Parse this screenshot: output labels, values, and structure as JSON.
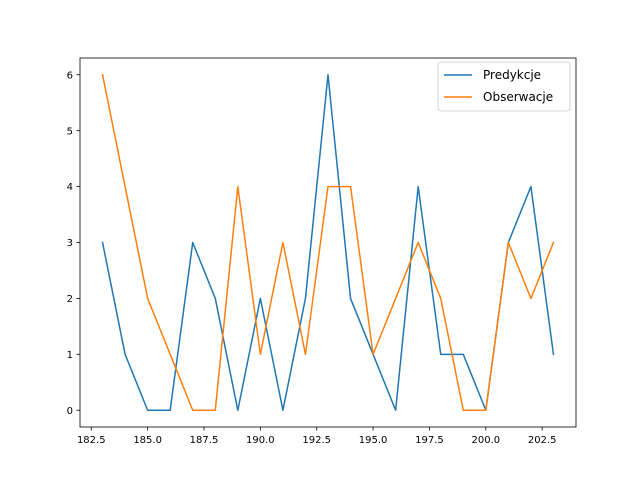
{
  "chart_data": {
    "type": "line",
    "title": "",
    "xlabel": "",
    "ylabel": "",
    "xlim": [
      182.0,
      204.0
    ],
    "ylim": [
      -0.3,
      6.3
    ],
    "x_ticks": [
      182.5,
      185.0,
      187.5,
      190.0,
      192.5,
      195.0,
      197.5,
      200.0,
      202.5
    ],
    "x_tick_labels": [
      "182.5",
      "185.0",
      "187.5",
      "190.0",
      "192.5",
      "195.0",
      "197.5",
      "200.0",
      "202.5"
    ],
    "y_ticks": [
      0,
      1,
      2,
      3,
      4,
      5,
      6
    ],
    "y_tick_labels": [
      "0",
      "1",
      "2",
      "3",
      "4",
      "5",
      "6"
    ],
    "grid": false,
    "legend_position": "top-right",
    "x": [
      183,
      184,
      185,
      186,
      187,
      188,
      189,
      190,
      191,
      192,
      193,
      194,
      195,
      196,
      197,
      198,
      199,
      200,
      201,
      202,
      203
    ],
    "series": [
      {
        "name": "Predykcje",
        "color": "#1f77b4",
        "values": [
          3,
          1,
          0,
          0,
          3,
          2,
          0,
          2,
          0,
          2,
          6,
          2,
          1,
          0,
          4,
          1,
          1,
          0,
          3,
          4,
          1
        ]
      },
      {
        "name": "Obserwacje",
        "color": "#ff7f0e",
        "values": [
          6,
          4,
          2,
          1,
          0,
          0,
          4,
          1,
          3,
          1,
          4,
          4,
          1,
          2,
          3,
          2,
          0,
          0,
          3,
          2,
          3
        ]
      }
    ]
  }
}
